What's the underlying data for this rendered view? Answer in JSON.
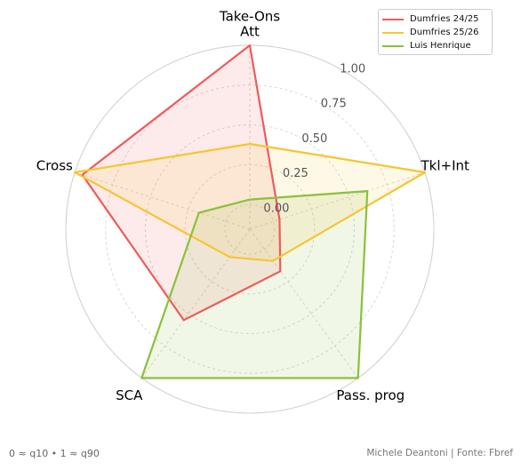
{
  "chart_data": {
    "type": "radar",
    "axes": [
      "Take-Ons\nAtt",
      "Tkl+Int",
      "Pass. prog",
      "SCA",
      "Cross"
    ],
    "rlim": [
      0,
      1
    ],
    "rticks": [
      "0.00",
      "0.25",
      "0.50",
      "0.75",
      "1.00"
    ],
    "grid": true,
    "legend_position": "top-right",
    "series": [
      {
        "name": "Dumfries 24/25",
        "color": "#f05a5a",
        "values": [
          1.0,
          0.04,
          0.17,
          0.55,
          0.95
        ]
      },
      {
        "name": "Dumfries 25/26",
        "color": "#f7c531",
        "values": [
          0.38,
          1.0,
          0.09,
          0.06,
          1.0
        ]
      },
      {
        "name": "Luis Henrique",
        "color": "#8ac13a",
        "values": [
          0.03,
          0.62,
          1.0,
          1.0,
          0.18
        ]
      }
    ]
  },
  "footer": {
    "note": "0 ≈ q10  •  1 ≈ q90",
    "credit": "Michele Deantoni | Fonte: Fbref"
  }
}
